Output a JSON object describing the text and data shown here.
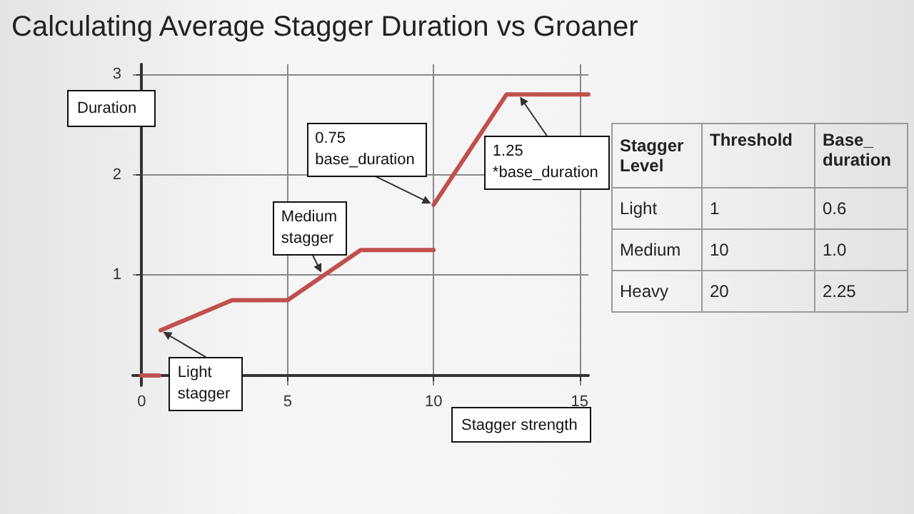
{
  "chart_data": [
    {
      "type": "line",
      "title": "Calculating Average Stagger Duration vs Groaner",
      "xlabel": "Stagger strength",
      "ylabel": "Duration",
      "marker": "none",
      "line_style": "solid",
      "grid": true,
      "series": [
        {
          "color": "#c0504d",
          "x": [
            0,
            0.6
          ],
          "values": [
            0,
            0
          ]
        },
        {
          "color": "#c0504d",
          "x": [
            0.65,
            3.1,
            5,
            7.5,
            10
          ],
          "values": [
            0.45,
            0.75,
            0.75,
            1.25,
            1.25
          ]
        },
        {
          "color": "#c0504d",
          "x": [
            10,
            12.5,
            15.3
          ],
          "values": [
            1.7,
            2.8,
            2.8
          ]
        }
      ],
      "xlim": [
        -0.3,
        15.3
      ],
      "ylim": [
        -0.1,
        3.1
      ],
      "xticks": [
        0,
        5,
        10,
        15
      ],
      "yticks": [
        1,
        2,
        3
      ],
      "annotations": [
        {
          "text": "Light stagger",
          "x": 0.65,
          "y": 0.45
        },
        {
          "text": "Medium stagger",
          "x": 6.2,
          "y": 1.0
        },
        {
          "text": "0.75 base_duration",
          "x": 10,
          "y": 1.7
        },
        {
          "text": "1.25 *base_duration",
          "x": 12.9,
          "y": 2.8
        }
      ]
    },
    {
      "type": "other",
      "legend_title": "Stagger Level",
      "categories": [
        "Light",
        "Medium",
        "Heavy"
      ],
      "data_labels": true,
      "series": [
        {
          "name": "Threshold",
          "values": [
            1,
            10,
            20
          ]
        },
        {
          "name": "Base_duration",
          "values": [
            0.6,
            1.0,
            2.25
          ],
          "value_labels": [
            "0.6",
            "1.0",
            "2.25"
          ]
        }
      ]
    }
  ]
}
